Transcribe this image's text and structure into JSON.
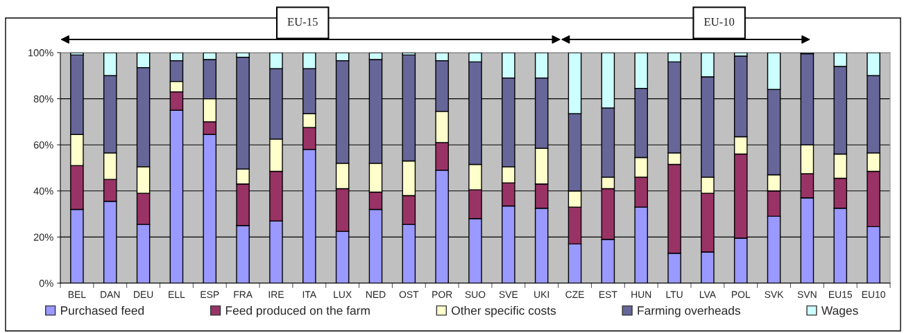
{
  "chart_data": {
    "type": "bar",
    "stacked": true,
    "categories": [
      "BEL",
      "DAN",
      "DEU",
      "ELL",
      "ESP",
      "FRA",
      "IRE",
      "ITA",
      "LUX",
      "NED",
      "OST",
      "POR",
      "SUO",
      "SVE",
      "UKI",
      "CZE",
      "EST",
      "HUN",
      "LTU",
      "LVA",
      "POL",
      "SVK",
      "SVN",
      "EU15",
      "EU10"
    ],
    "series": [
      {
        "name": "Purchased feed",
        "color": "#9999ff",
        "values": [
          32,
          35.5,
          25.5,
          75,
          64.5,
          25,
          27,
          58,
          22.5,
          32,
          25.5,
          49,
          28,
          33.5,
          32.5,
          17,
          19,
          33,
          13,
          13.5,
          19.5,
          29,
          37,
          32.5,
          24.5
        ]
      },
      {
        "name": "Feed produced on the farm",
        "color": "#993366",
        "values": [
          19,
          9.5,
          13.5,
          8,
          5.5,
          18,
          21.5,
          9.5,
          18.5,
          7.5,
          12.5,
          12,
          12.5,
          10,
          10.5,
          16,
          22,
          13,
          38.5,
          25.5,
          36.5,
          11,
          10.5,
          13,
          24
        ]
      },
      {
        "name": "Other specific costs",
        "color": "#ffffcc",
        "values": [
          13.5,
          11.5,
          11.5,
          4.5,
          10,
          6.5,
          14,
          6,
          11,
          12.5,
          15,
          13.5,
          11,
          7,
          15.5,
          7,
          5,
          8.5,
          5,
          7,
          7.5,
          7,
          12.5,
          10.5,
          8
        ]
      },
      {
        "name": "Farming overheads",
        "color": "#666699",
        "values": [
          34.5,
          33.5,
          43,
          9,
          17,
          48.5,
          30.5,
          19.5,
          44.5,
          45,
          46,
          22,
          44.5,
          38.5,
          30.5,
          33.5,
          30,
          30,
          39.5,
          43.5,
          35,
          37,
          39.5,
          38,
          33.5
        ]
      },
      {
        "name": "Wages",
        "color": "#ccffff",
        "values": [
          1,
          10,
          6.5,
          3.5,
          3,
          2,
          7,
          7,
          3.5,
          3,
          1,
          3.5,
          4,
          11,
          11,
          26.5,
          24,
          15.5,
          4,
          10.5,
          1.5,
          16,
          0.5,
          6,
          10
        ]
      }
    ],
    "ylim": [
      0,
      100
    ],
    "yticks": [
      {
        "value": 0,
        "label": "0%"
      },
      {
        "value": 20,
        "label": "20%"
      },
      {
        "value": 40,
        "label": "40%"
      },
      {
        "value": 60,
        "label": "60%"
      },
      {
        "value": 80,
        "label": "80%"
      },
      {
        "value": 100,
        "label": "100%"
      }
    ],
    "grid": "y",
    "legend": "bottom",
    "annotations": [
      "EU-15",
      "EU-10"
    ]
  }
}
